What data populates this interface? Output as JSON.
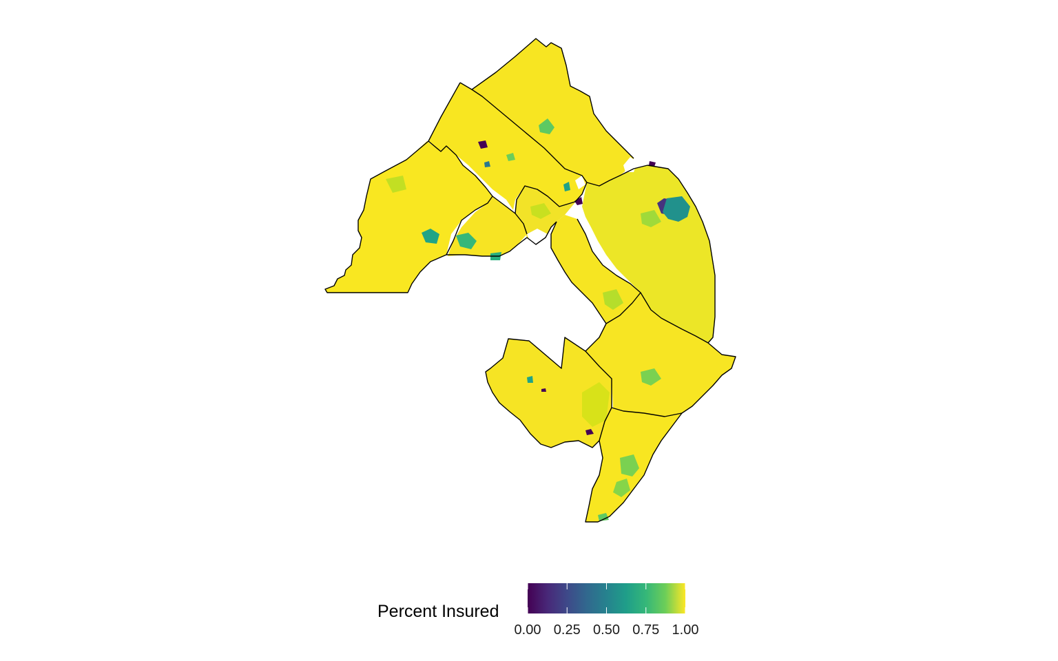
{
  "map": {
    "type": "choropleth",
    "fill_variable": "Percent Insured",
    "palette": [
      "#440154",
      "#3b528b",
      "#21908c",
      "#5dc863",
      "#fde725"
    ],
    "boundary_color": "#000000",
    "missing_color": "#ffffff"
  },
  "legend": {
    "title": "Percent Insured",
    "position": "bottom",
    "range": [
      0,
      1
    ],
    "ticks": [
      {
        "value": 0.0,
        "label": "0.00"
      },
      {
        "value": 0.25,
        "label": "0.25"
      },
      {
        "value": 0.5,
        "label": "0.50"
      },
      {
        "value": 0.75,
        "label": "0.75"
      },
      {
        "value": 1.0,
        "label": "1.00"
      }
    ]
  }
}
